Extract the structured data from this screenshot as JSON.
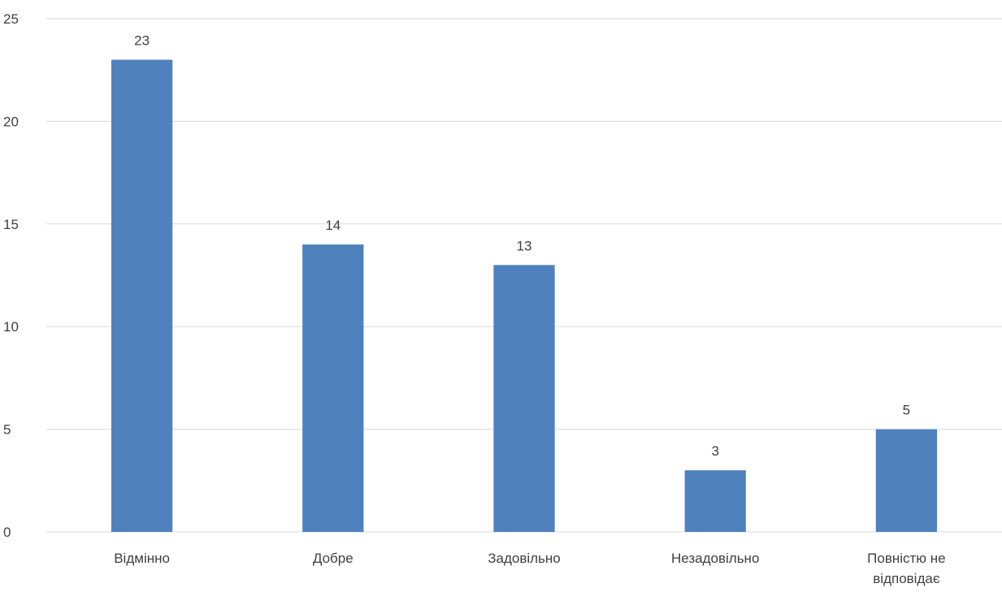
{
  "chart_data": {
    "type": "bar",
    "categories": [
      "Відмінно",
      "Добре",
      "Задовільно",
      "Незадовільно",
      "Повністю не відповідає"
    ],
    "category_label_lines": [
      [
        "Відмінно"
      ],
      [
        "Добре"
      ],
      [
        "Задовільно"
      ],
      [
        "Незадовільно"
      ],
      [
        "Повністю не",
        "відповідає"
      ]
    ],
    "values": [
      23,
      14,
      13,
      3,
      5
    ],
    "data_labels": [
      "23",
      "14",
      "13",
      "3",
      "5"
    ],
    "ylim": [
      0,
      25
    ],
    "yticks": [
      0,
      5,
      10,
      15,
      20,
      25
    ],
    "ytick_labels": [
      "0",
      "5",
      "10",
      "15",
      "20",
      "25"
    ],
    "title": "",
    "xlabel": "",
    "ylabel": "",
    "grid": true,
    "legend": "none",
    "colors": {
      "bar": "#4f81bd",
      "grid": "#d9d9d9",
      "text": "#404040"
    }
  }
}
